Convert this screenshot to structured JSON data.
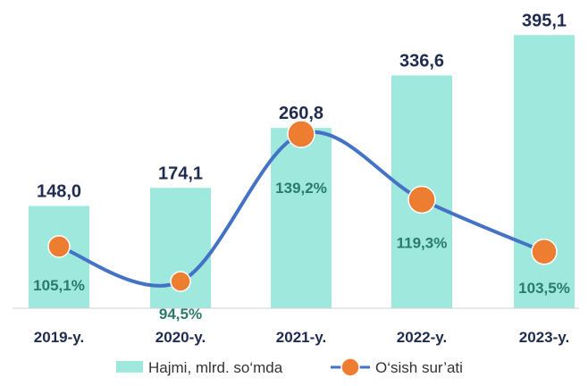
{
  "chart_data": {
    "type": "bar",
    "categories": [
      "2019-y.",
      "2020-y.",
      "2021-y.",
      "2022-y.",
      "2023-y."
    ],
    "series": [
      {
        "name": "Hajmi, mlrd. so‘mda",
        "type": "bar",
        "values": [
          148.0,
          174.1,
          260.8,
          336.6,
          395.1
        ],
        "labels": [
          "148,0",
          "174,1",
          "260,8",
          "336,6",
          "395,1"
        ],
        "color": "#9ee8de"
      },
      {
        "name": "O‘sish sur’ati",
        "type": "line",
        "values": [
          105.1,
          94.5,
          139.2,
          119.3,
          103.5
        ],
        "labels": [
          "105,1%",
          "94,5%",
          "139,2%",
          "119,3%",
          "103,5%"
        ],
        "line_color": "#4472c4",
        "marker_color": "#ed7d31"
      }
    ],
    "bar_ylim": [
      0,
      420
    ],
    "line_ylim": [
      60,
      160
    ],
    "grid": false,
    "legend_position": "bottom"
  }
}
